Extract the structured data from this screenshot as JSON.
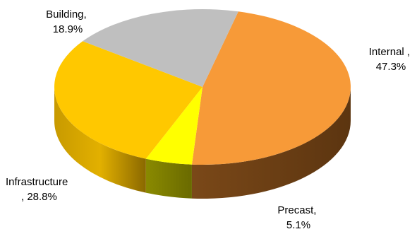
{
  "chart_data": {
    "type": "pie",
    "style": "3d",
    "title": "",
    "series": [
      {
        "slices": [
          {
            "name": "Internal",
            "value": 47.3,
            "label_line1": "Internal ,",
            "label_line2": "47.3%",
            "color": "#F79A38",
            "side_color": "#6E4016"
          },
          {
            "name": "Precast",
            "value": 5.1,
            "label_line1": "Precast,",
            "label_line2": "5.1%",
            "color": "#FFFF00",
            "side_color": "#7D7D00"
          },
          {
            "name": "Infrastructure",
            "value": 28.8,
            "label_line1": "Infrastructure",
            "label_line2": ", 28.8%",
            "color": "#FFC800",
            "side_color": "#B88C00"
          },
          {
            "name": "Building",
            "value": 18.9,
            "label_line1": "Building,",
            "label_line2": "18.9%",
            "color": "#BFBFBF",
            "side_color": "#7F7F7F"
          }
        ]
      }
    ],
    "legend": "none",
    "start_angle_deg": -76,
    "direction": "clockwise"
  }
}
